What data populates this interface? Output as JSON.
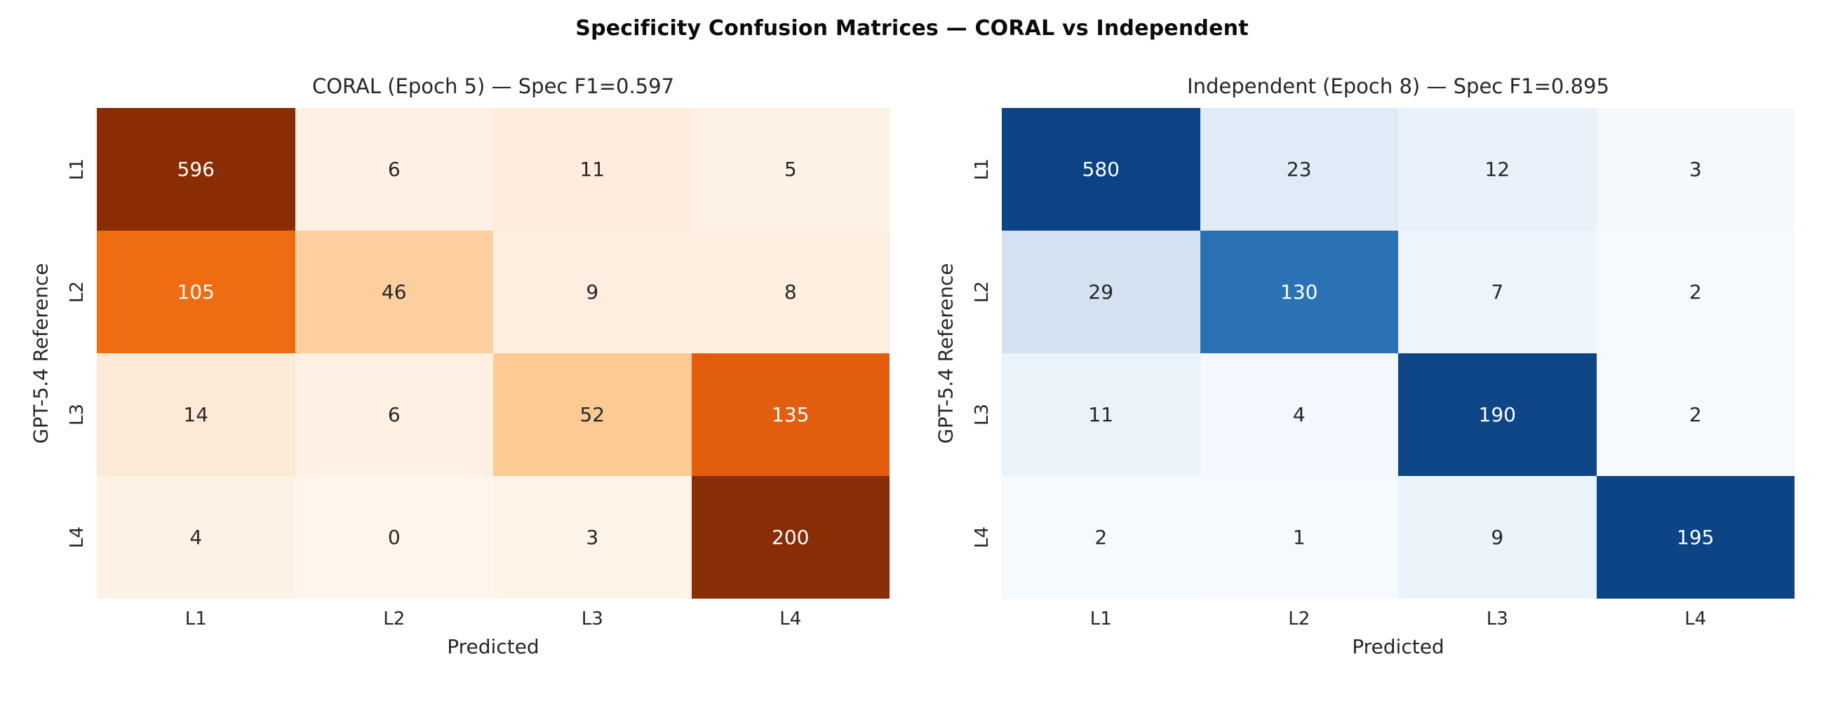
{
  "figure": {
    "title": "Specificity Confusion Matrices — CORAL vs Independent",
    "background_color": "#ffffff"
  },
  "colors": {
    "text_dark": "#262626",
    "text_light": "#ffffff",
    "coral_max": "#8a2d05",
    "coral_mid": "#ef6c13",
    "blues_max": "#0d4385",
    "blues_mid": "#2b72b4"
  },
  "chart_data": [
    {
      "type": "heatmap",
      "title": "CORAL (Epoch 5) — Spec F1=0.597",
      "model": "CORAL",
      "epoch": 5,
      "spec_f1": 0.597,
      "xlabel": "Predicted",
      "ylabel": "GPT-5.4 Reference",
      "x_categories": [
        "L1",
        "L2",
        "L3",
        "L4"
      ],
      "y_categories": [
        "L1",
        "L2",
        "L3",
        "L4"
      ],
      "values": [
        [
          596,
          6,
          11,
          5
        ],
        [
          105,
          46,
          9,
          8
        ],
        [
          14,
          6,
          52,
          135
        ],
        [
          4,
          0,
          3,
          200
        ]
      ],
      "colormap": "Oranges",
      "cell_colors": [
        [
          "#8a2d05",
          "#fef1e3",
          "#feeddc",
          "#fef1e5"
        ],
        [
          "#ef6c13",
          "#fdcf9e",
          "#feeedf",
          "#feefe0"
        ],
        [
          "#fdead6",
          "#fef1e3",
          "#fdca93",
          "#e25d0e"
        ],
        [
          "#fef2e6",
          "#fff5eb",
          "#fef3e7",
          "#882d06"
        ]
      ]
    },
    {
      "type": "heatmap",
      "title": "Independent (Epoch 8) — Spec F1=0.895",
      "model": "Independent",
      "epoch": 8,
      "spec_f1": 0.895,
      "xlabel": "Predicted",
      "ylabel": "GPT-5.4 Reference",
      "x_categories": [
        "L1",
        "L2",
        "L3",
        "L4"
      ],
      "y_categories": [
        "L1",
        "L2",
        "L3",
        "L4"
      ],
      "values": [
        [
          580,
          23,
          12,
          3
        ],
        [
          29,
          130,
          7,
          2
        ],
        [
          11,
          4,
          190,
          2
        ],
        [
          2,
          1,
          9,
          195
        ]
      ],
      "colormap": "Blues",
      "cell_colors": [
        [
          "#0d4385",
          "#dfebf7",
          "#e9f2fa",
          "#f4f9fd"
        ],
        [
          "#d3e1f0",
          "#2b72b4",
          "#eff5fc",
          "#f5fafe"
        ],
        [
          "#eaf2fa",
          "#f2f8fd",
          "#0d4587",
          "#f5fafe"
        ],
        [
          "#f5fafe",
          "#f6fafe",
          "#ecf4fb",
          "#0d4486"
        ]
      ]
    }
  ]
}
